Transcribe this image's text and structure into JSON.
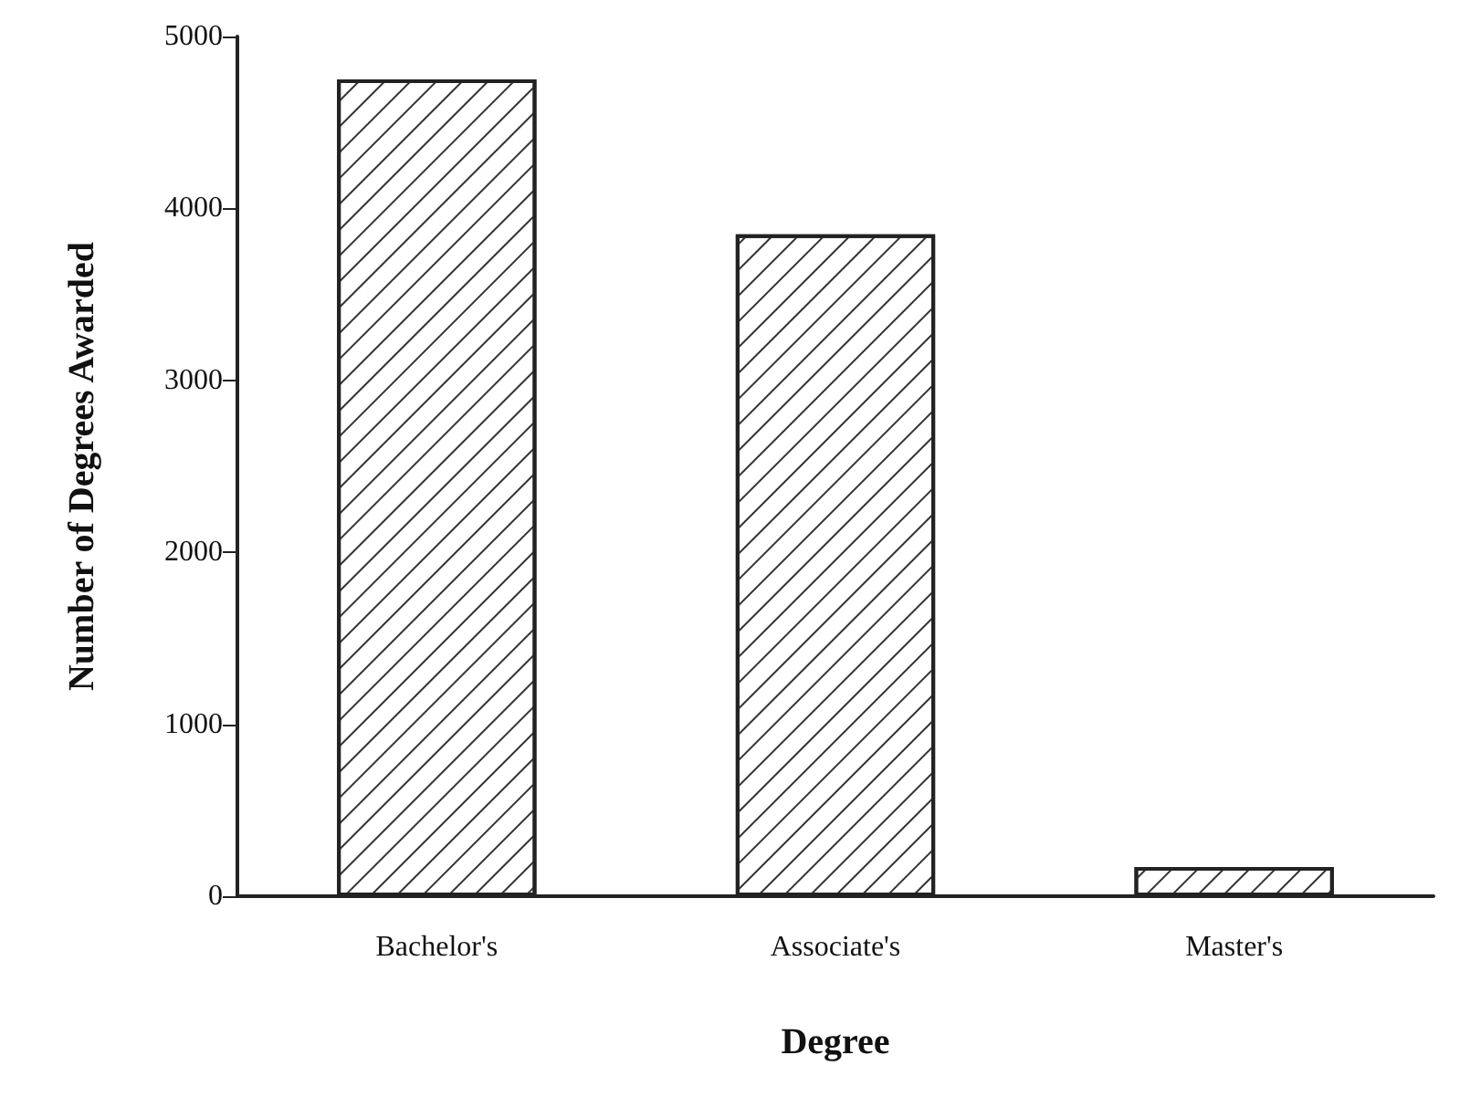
{
  "chart_data": {
    "type": "bar",
    "xlabel": "Degree",
    "ylabel": "Number of Degrees Awarded",
    "categories": [
      "Bachelor's",
      "Associate's",
      "Master's"
    ],
    "values": [
      4750,
      3850,
      170
    ],
    "color": "#ffffff",
    "ylim": [
      0,
      5000
    ],
    "yticks": [
      0,
      1000,
      2000,
      3000,
      4000,
      5000
    ],
    "grid": false
  }
}
